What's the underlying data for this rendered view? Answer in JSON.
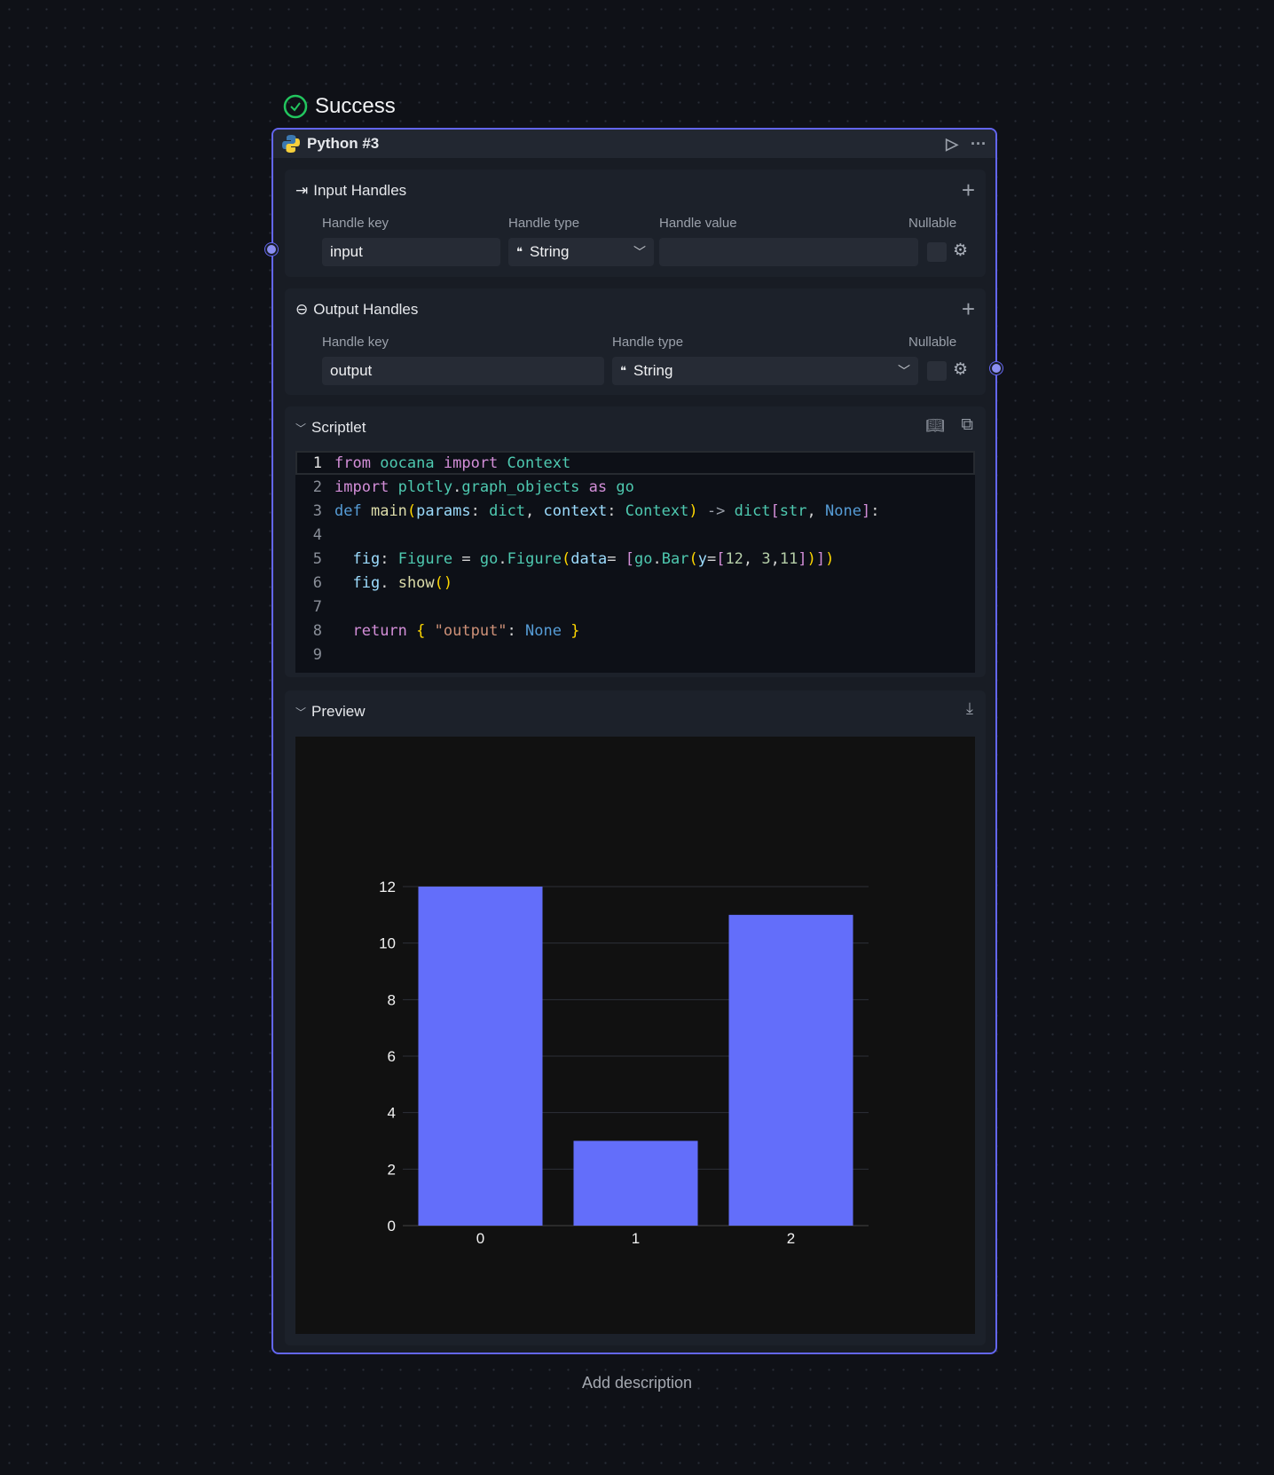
{
  "status": {
    "label": "Success",
    "color": "#22c55e",
    "icon": "check-circle-icon"
  },
  "node": {
    "title": "Python #3",
    "icon": "python-icon",
    "accent": "#6366f1"
  },
  "input_handles": {
    "title": "Input Handles",
    "columns": [
      "Handle key",
      "Handle type",
      "Handle value",
      "Nullable"
    ],
    "rows": [
      {
        "key": "input",
        "type": "String",
        "value": ""
      }
    ]
  },
  "output_handles": {
    "title": "Output Handles",
    "columns": [
      "Handle key",
      "Handle type",
      "Nullable"
    ],
    "rows": [
      {
        "key": "output",
        "type": "String"
      }
    ]
  },
  "scriptlet": {
    "title": "Scriptlet",
    "lines": [
      "from oocana import Context",
      "import plotly.graph_objects as go",
      "def main(params: dict, context: Context) -> dict[str, None]:",
      "",
      "  fig: Figure = go.Figure(data= [go.Bar(y=[12, 3,11])])",
      "  fig. show()",
      "",
      "  return { \"output\": None }",
      ""
    ]
  },
  "preview": {
    "title": "Preview"
  },
  "chart_data": {
    "type": "bar",
    "categories": [
      "0",
      "1",
      "2"
    ],
    "values": [
      12,
      3,
      11
    ],
    "ylim": [
      0,
      12
    ],
    "yticks": [
      0,
      2,
      4,
      6,
      8,
      10,
      12
    ],
    "bar_color": "#636efa",
    "background": "#111111",
    "grid": true
  },
  "footer": {
    "add_description": "Add description"
  }
}
